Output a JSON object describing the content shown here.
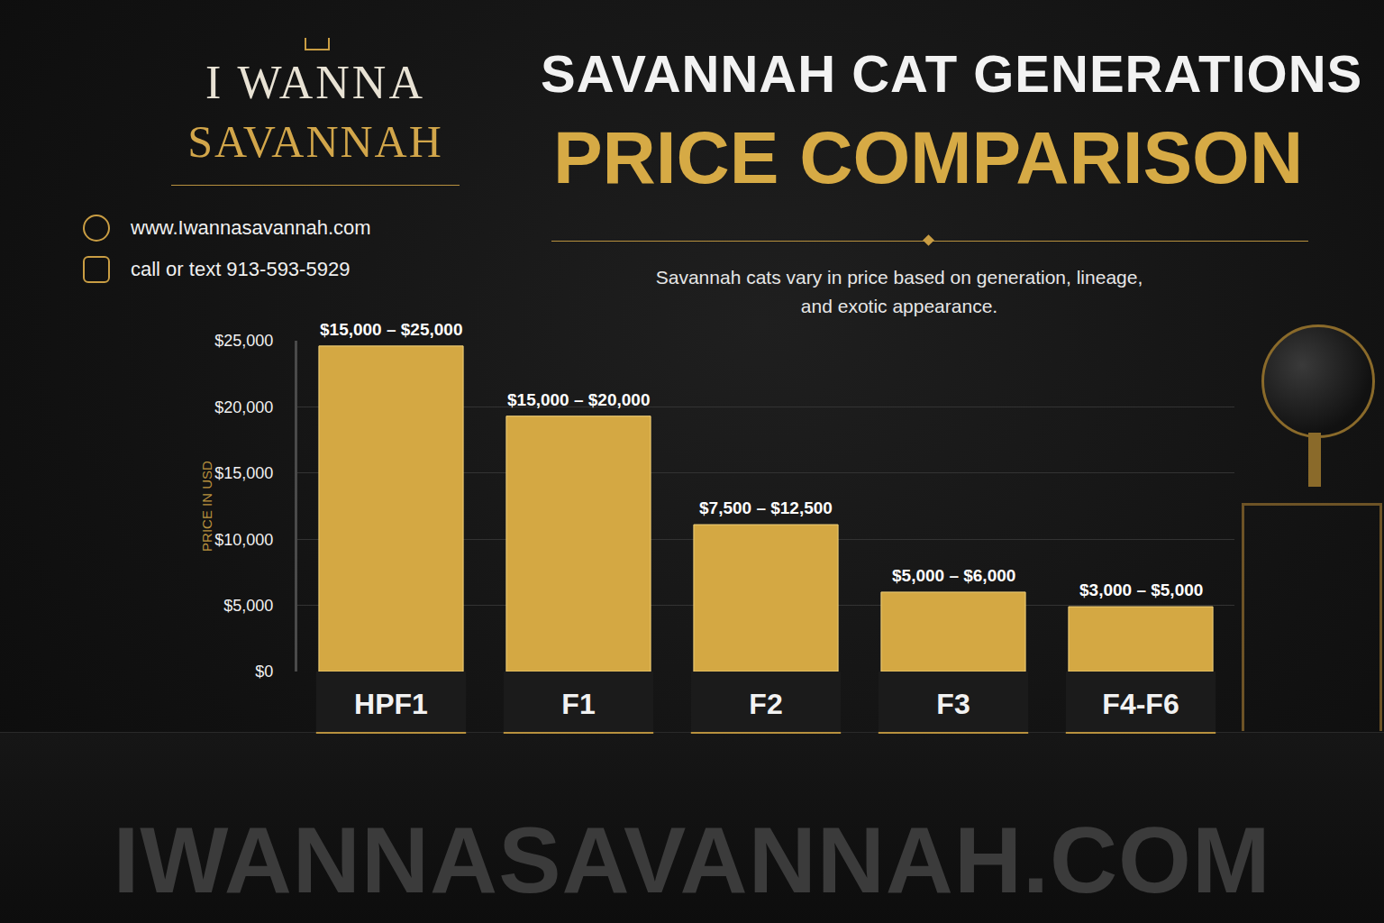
{
  "chart_data": {
    "type": "bar",
    "title": "SAVANNAH CAT GENERATIONS",
    "subtitle": "PRICE COMPARISON",
    "description": "Savannah cats vary in price based on generation, lineage, and exotic appearance.",
    "ylabel": "PRICE IN USD",
    "categories": [
      "HPF1",
      "F1",
      "F2",
      "F3",
      "F4-F6"
    ],
    "values": [
      24600,
      19300,
      11100,
      6000,
      4900
    ],
    "annotations": [
      "$15,000 – $25,000",
      "$15,000 – $20,000",
      "$7,500 – $12,500",
      "$5,000 – $6,000",
      "$3,000 – $5,000"
    ],
    "color": "#d4a843",
    "ylim": [
      0,
      25000
    ],
    "yticks": [
      {
        "value": 0,
        "label": "$0"
      },
      {
        "value": 5000,
        "label": "$5,000"
      },
      {
        "value": 10000,
        "label": "$10,000"
      },
      {
        "value": 15000,
        "label": "$15,000"
      },
      {
        "value": 20000,
        "label": "$20,000"
      },
      {
        "value": 25000,
        "label": "$25,000"
      }
    ],
    "grid": true
  },
  "branding": {
    "logo_line1": "I WANNA",
    "logo_line2": "SAVANNAH",
    "website": "www.Iwannasavannah.com",
    "phone": "call or text 913-593-5929",
    "watermark": "IWANNASAVANNAH.COM"
  }
}
